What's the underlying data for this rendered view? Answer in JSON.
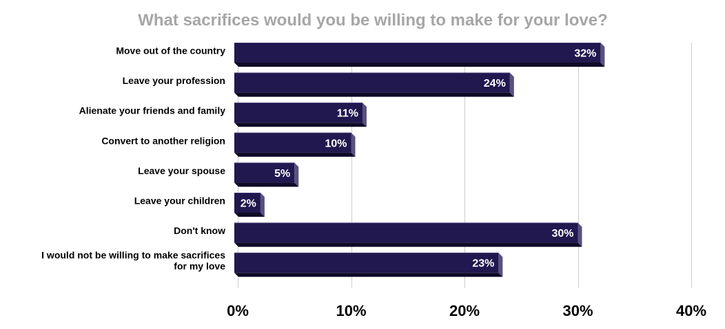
{
  "chart_data": {
    "type": "bar",
    "orientation": "horizontal",
    "title": "What sacrifices would you be willing to make for your love?",
    "categories": [
      "Move out of the country",
      "Leave your profession",
      "Alienate your friends and family",
      "Convert to another religion",
      "Leave your spouse",
      "Leave your children",
      "Don't know",
      "I would not be willing to make sacrifices for my love"
    ],
    "values": [
      32,
      24,
      11,
      10,
      5,
      2,
      30,
      23
    ],
    "value_labels": [
      "32%",
      "24%",
      "11%",
      "10%",
      "5%",
      "2%",
      "30%",
      "23%"
    ],
    "x_ticks": [
      0,
      10,
      20,
      30,
      40
    ],
    "x_tick_labels": [
      "0%",
      "10%",
      "20%",
      "30%",
      "40%"
    ],
    "xlim": [
      0,
      40
    ],
    "grid": true,
    "colors": {
      "bar": "#20184e",
      "bar_top": "#3a3070",
      "bar_side": "#5a507f",
      "bar_shadow": "#0e0a26",
      "title": "#a6a6a6",
      "grid": "#cccccc"
    }
  }
}
